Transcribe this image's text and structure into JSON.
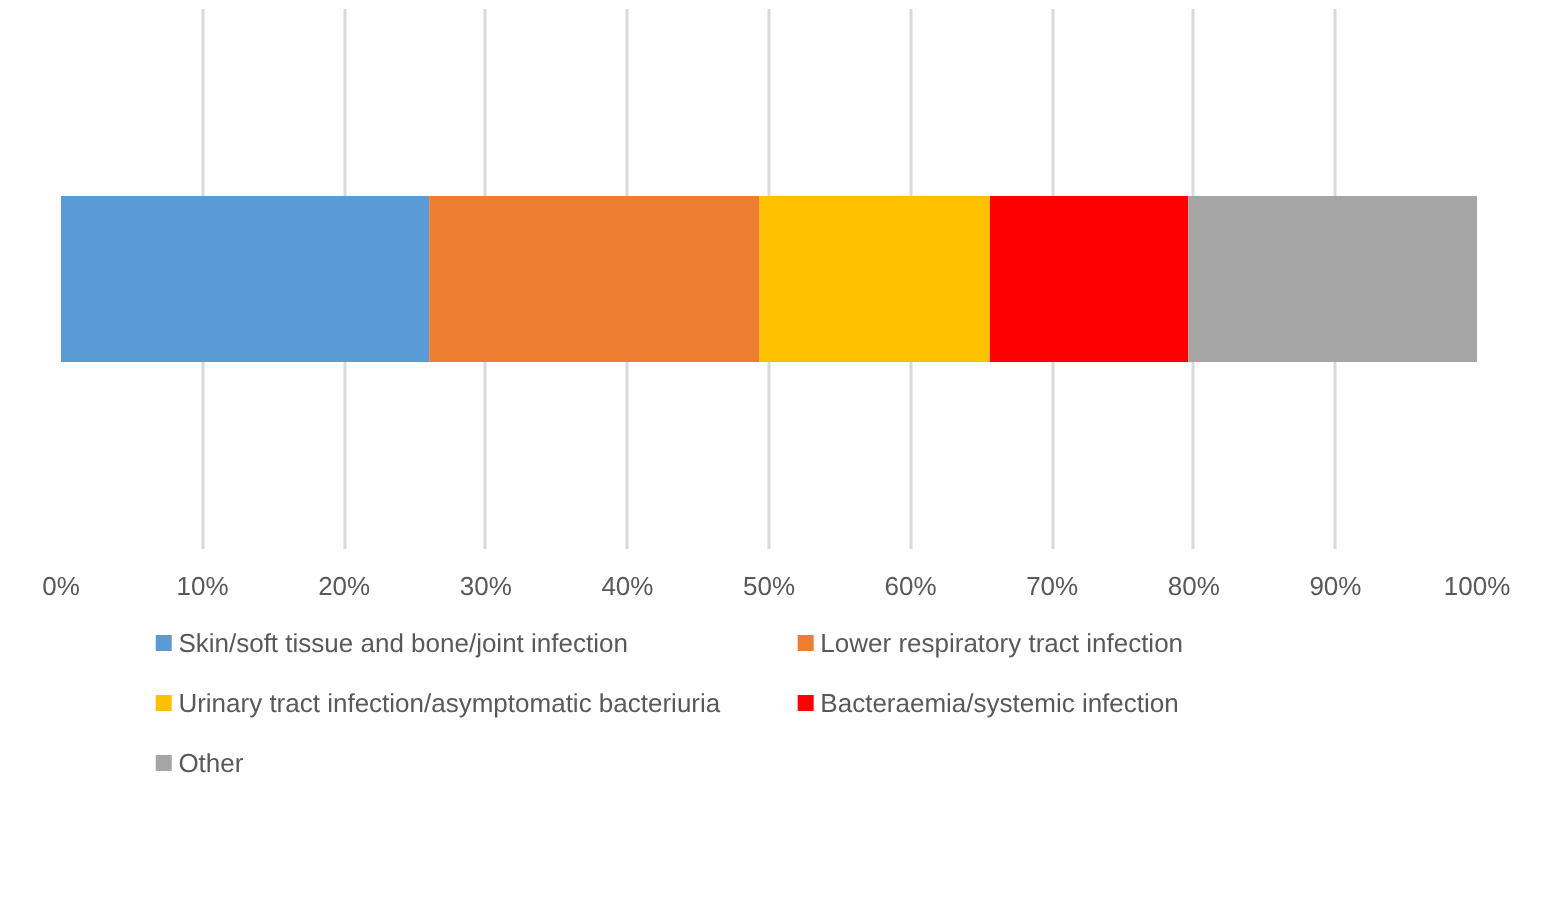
{
  "chart_data": {
    "type": "bar",
    "orientation": "horizontal",
    "stacked": true,
    "categories": [
      null
    ],
    "series": [
      {
        "name": "Skin/soft tissue and bone/joint infection",
        "color": "#5b9bd5",
        "values": [
          26.0
        ]
      },
      {
        "name": "Lower respiratory tract infection",
        "color": "#ed7d31",
        "values": [
          23.3
        ]
      },
      {
        "name": "Urinary tract infection/asymptomatic bacteriuria",
        "color": "#ffc000",
        "values": [
          16.3
        ]
      },
      {
        "name": "Bacteraemia/systemic infection",
        "color": "#ff0000",
        "values": [
          14.0
        ]
      },
      {
        "name": "Other",
        "color": "#a5a5a5",
        "values": [
          20.4
        ]
      }
    ],
    "xlim": [
      0,
      100
    ],
    "xticks": [
      {
        "value": 0,
        "label": "0%"
      },
      {
        "value": 10,
        "label": "10%"
      },
      {
        "value": 20,
        "label": "20%"
      },
      {
        "value": 30,
        "label": "30%"
      },
      {
        "value": 40,
        "label": "40%"
      },
      {
        "value": 50,
        "label": "50%"
      },
      {
        "value": 60,
        "label": "60%"
      },
      {
        "value": 70,
        "label": "70%"
      },
      {
        "value": 80,
        "label": "80%"
      },
      {
        "value": 90,
        "label": "90%"
      },
      {
        "value": 100,
        "label": "100%"
      }
    ],
    "grid": "x",
    "legend": "bottom",
    "tick_labels": "x"
  }
}
